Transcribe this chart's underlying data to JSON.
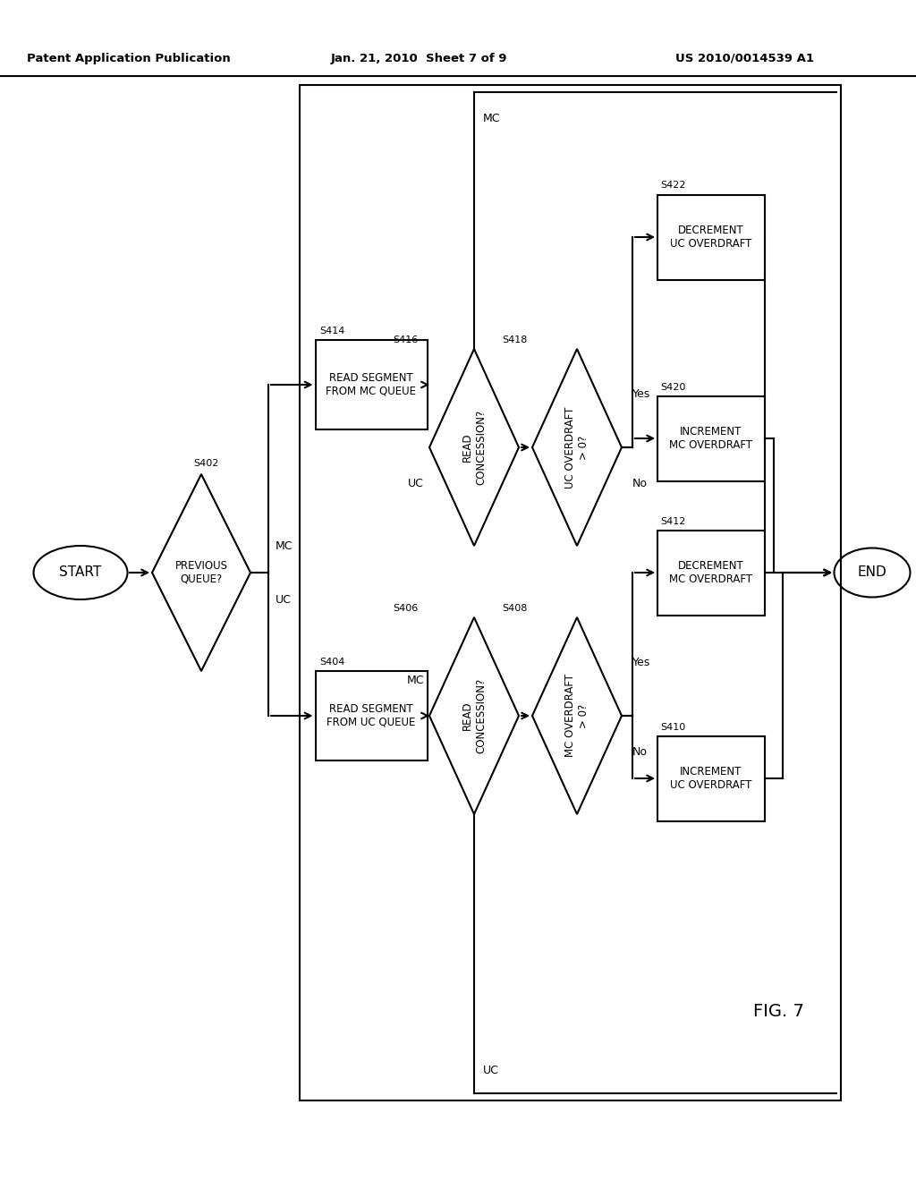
{
  "title_left": "Patent Application Publication",
  "title_center": "Jan. 21, 2010  Sheet 7 of 9",
  "title_right": "US 2010/0014539 A1",
  "fig_label": "FIG. 7",
  "background": "#ffffff",
  "line_color": "#000000"
}
